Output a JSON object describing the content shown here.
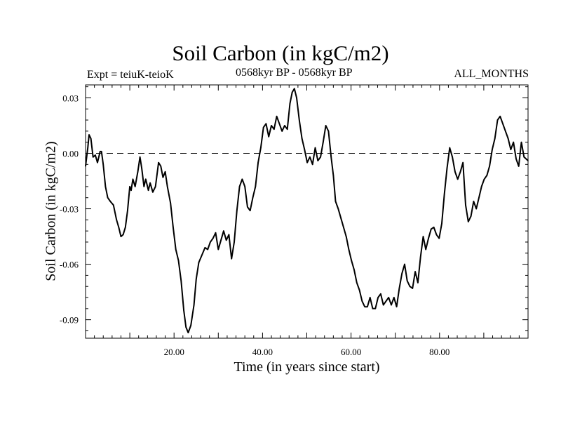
{
  "chart_data": {
    "type": "line",
    "title": "Soil Carbon (in kgC/m2)",
    "subtitle_left": "Expt = teiuK-teioK",
    "subtitle_center": "0568kyr BP - 0568kyr BP",
    "subtitle_right": "ALL_MONTHS",
    "xlabel": "Time (in years since start)",
    "ylabel": "Soil Carbon (in kgC/m2)",
    "xlim": [
      0,
      100
    ],
    "ylim": [
      -0.1,
      0.037
    ],
    "xticks": [
      20,
      40,
      60,
      80
    ],
    "xtick_labels": [
      "20.00",
      "40.00",
      "60.00",
      "80.00"
    ],
    "yticks": [
      0.03,
      0.0,
      -0.03,
      -0.06,
      -0.09
    ],
    "ytick_labels": [
      "0.03",
      "0.00",
      "-0.03",
      "-0.06",
      "-0.09"
    ],
    "reference_line": 0.0,
    "grid": false,
    "series": [
      {
        "color": "#000000",
        "x": [
          0,
          0.5,
          0.8,
          1.2,
          1.7,
          2.2,
          2.7,
          3.3,
          3.6,
          4.0,
          4.5,
          5.0,
          5.6,
          6.3,
          7.0,
          7.5,
          8.0,
          8.5,
          9.0,
          9.5,
          10.0,
          10.3,
          10.7,
          11.2,
          11.8,
          12.3,
          12.7,
          13.2,
          13.6,
          14.2,
          14.6,
          15.2,
          15.8,
          16.5,
          17.0,
          17.5,
          18.0,
          18.5,
          19.2,
          19.8,
          20.4,
          21.0,
          21.6,
          22.2,
          22.7,
          23.2,
          23.8,
          24.5,
          25.0,
          25.6,
          26.3,
          27.0,
          27.6,
          28.2,
          28.8,
          29.4,
          30.0,
          30.6,
          31.2,
          31.8,
          32.4,
          33.0,
          33.6,
          34.2,
          34.8,
          35.4,
          36.0,
          36.6,
          37.2,
          37.8,
          38.4,
          39.0,
          39.6,
          40.2,
          40.8,
          41.4,
          42.0,
          42.6,
          43.2,
          43.8,
          44.4,
          45.0,
          45.6,
          46.2,
          46.7,
          47.2,
          47.7,
          48.3,
          48.9,
          49.5,
          50.1,
          50.7,
          51.3,
          51.9,
          52.5,
          53.1,
          53.7,
          54.3,
          54.9,
          55.5,
          56.0,
          56.5,
          57.1,
          57.7,
          58.3,
          58.9,
          59.5,
          60.1,
          60.7,
          61.3,
          61.9,
          62.5,
          63.1,
          63.7,
          64.3,
          64.9,
          65.5,
          66.1,
          66.7,
          67.3,
          67.9,
          68.5,
          69.1,
          69.7,
          70.3,
          70.9,
          71.5,
          72.1,
          72.7,
          73.3,
          73.9,
          74.5,
          75.1,
          75.7,
          76.3,
          76.9,
          77.5,
          78.1,
          78.7,
          79.3,
          79.9,
          80.5,
          81.1,
          81.7,
          82.3,
          82.9,
          83.5,
          84.1,
          84.7,
          85.3,
          85.9,
          86.5,
          87.1,
          87.7,
          88.3,
          88.9,
          89.5,
          90.1,
          90.7,
          91.3,
          91.9,
          92.5,
          93.1,
          93.7,
          94.3,
          94.9,
          95.5,
          96.1,
          96.7,
          97.3,
          97.9,
          98.5,
          99.1,
          100
        ],
        "y": [
          -0.007,
          0.003,
          0.01,
          0.008,
          -0.002,
          -0.001,
          -0.005,
          0.001,
          0.001,
          -0.006,
          -0.018,
          -0.024,
          -0.026,
          -0.028,
          -0.036,
          -0.04,
          -0.045,
          -0.044,
          -0.04,
          -0.031,
          -0.018,
          -0.02,
          -0.014,
          -0.018,
          -0.01,
          -0.002,
          -0.008,
          -0.018,
          -0.014,
          -0.02,
          -0.016,
          -0.021,
          -0.018,
          -0.005,
          -0.007,
          -0.013,
          -0.01,
          -0.018,
          -0.027,
          -0.04,
          -0.052,
          -0.058,
          -0.069,
          -0.085,
          -0.094,
          -0.097,
          -0.093,
          -0.082,
          -0.068,
          -0.059,
          -0.055,
          -0.051,
          -0.052,
          -0.048,
          -0.046,
          -0.043,
          -0.052,
          -0.047,
          -0.042,
          -0.047,
          -0.044,
          -0.057,
          -0.048,
          -0.031,
          -0.018,
          -0.014,
          -0.018,
          -0.029,
          -0.031,
          -0.024,
          -0.018,
          -0.005,
          0.003,
          0.014,
          0.016,
          0.009,
          0.015,
          0.013,
          0.02,
          0.016,
          0.012,
          0.015,
          0.013,
          0.027,
          0.033,
          0.035,
          0.03,
          0.018,
          0.008,
          0.002,
          -0.005,
          -0.002,
          -0.006,
          0.003,
          -0.004,
          -0.002,
          0.006,
          0.015,
          0.012,
          -0.002,
          -0.012,
          -0.026,
          -0.03,
          -0.035,
          -0.04,
          -0.045,
          -0.052,
          -0.058,
          -0.063,
          -0.07,
          -0.074,
          -0.08,
          -0.083,
          -0.083,
          -0.078,
          -0.084,
          -0.084,
          -0.078,
          -0.076,
          -0.082,
          -0.08,
          -0.078,
          -0.082,
          -0.078,
          -0.083,
          -0.073,
          -0.065,
          -0.06,
          -0.069,
          -0.072,
          -0.073,
          -0.064,
          -0.07,
          -0.056,
          -0.045,
          -0.052,
          -0.046,
          -0.041,
          -0.04,
          -0.044,
          -0.046,
          -0.038,
          -0.022,
          -0.008,
          0.003,
          -0.002,
          -0.01,
          -0.014,
          -0.01,
          -0.005,
          -0.028,
          -0.037,
          -0.034,
          -0.026,
          -0.03,
          -0.024,
          -0.018,
          -0.014,
          -0.012,
          -0.007,
          0.002,
          0.008,
          0.018,
          0.02,
          0.016,
          0.012,
          0.008,
          0.002,
          0.006,
          -0.003,
          -0.007,
          0.006,
          -0.002,
          -0.004
        ]
      }
    ]
  }
}
